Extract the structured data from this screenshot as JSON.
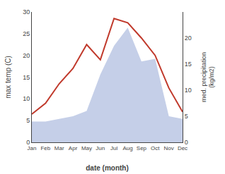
{
  "chart_data": {
    "type": "line",
    "xlabel": "date (month)",
    "ylabel": "max temp (C)",
    "y2label": "med. precipitation\n(kg/m2)",
    "categories": [
      "Jan",
      "Feb",
      "Mar",
      "Apr",
      "May",
      "Jun",
      "Jul",
      "Aug",
      "Sep",
      "Oct",
      "Nov",
      "Dec"
    ],
    "series": [
      {
        "type": "area",
        "axis": "y2",
        "color": "#c5cfe8",
        "values": [
          4.0,
          4.0,
          4.5,
          5.0,
          6.0,
          13.0,
          18.5,
          22.0,
          15.5,
          16.0,
          5.0,
          4.5
        ]
      },
      {
        "type": "line",
        "color": "#c0392b",
        "values": [
          6.5,
          9.0,
          13.5,
          17.0,
          22.5,
          19.0,
          28.5,
          27.5,
          24.0,
          20.0,
          12.5,
          7.0
        ]
      }
    ],
    "ylim": [
      0,
      30
    ],
    "yticks": [
      0,
      5,
      10,
      15,
      20,
      25,
      30
    ],
    "y2lim": [
      0,
      25
    ],
    "y2ticks": [
      0,
      5,
      10,
      15,
      20
    ],
    "grid": false
  }
}
